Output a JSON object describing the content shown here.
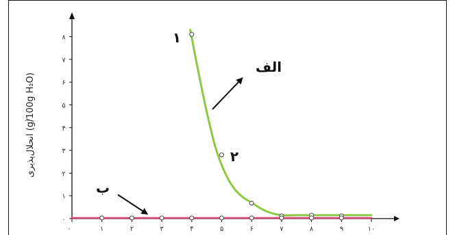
{
  "chart_data": {
    "type": "line",
    "ylabel": "انحلال‌پذیری (g/100g H₂O)",
    "x_ticks": [
      "۰",
      "۱",
      "۲",
      "۳",
      "۴",
      "۵",
      "۶",
      "۷",
      "۸",
      "۹",
      "۱۰"
    ],
    "y_ticks": [
      "۰",
      "۱",
      "۲",
      "۳",
      "۴",
      "۵",
      "۶",
      "۷",
      "۸"
    ],
    "xlim": [
      0,
      10
    ],
    "ylim": [
      0,
      8
    ],
    "series": [
      {
        "name": "الف",
        "color": "#8dc63f",
        "curve_x": [
          3.95,
          4.2,
          4.5,
          4.8,
          5.1,
          5.4,
          5.7,
          6.0,
          6.3,
          6.6,
          7.0,
          7.5,
          8.0,
          9.0,
          10.0
        ],
        "curve_y": [
          8.3,
          6.6,
          4.7,
          3.1,
          2.05,
          1.35,
          0.95,
          0.7,
          0.45,
          0.27,
          0.15,
          0.15,
          0.15,
          0.15,
          0.15
        ],
        "points_x": [
          4,
          5,
          6,
          7,
          8,
          9
        ],
        "points_y": [
          8.1,
          2.8,
          0.68,
          0.12,
          0.15,
          0.12
        ]
      },
      {
        "name": "ب",
        "color": "#e0457b",
        "curve_x": [
          0,
          10
        ],
        "curve_y": [
          0.03,
          0.03
        ],
        "points_x": [
          1,
          2,
          3,
          4,
          5,
          6,
          7,
          8,
          9
        ],
        "points_y": [
          0.03,
          0.03,
          0.03,
          0.03,
          0.03,
          0.03,
          0.03,
          0.03,
          0.03
        ]
      }
    ],
    "annotations": [
      {
        "text": "الف",
        "target_series": "الف"
      },
      {
        "text": "ب",
        "target_series": "ب"
      },
      {
        "text": "۱",
        "point": [
          4,
          8.1
        ]
      },
      {
        "text": "۲",
        "point": [
          5,
          2.8
        ]
      }
    ]
  },
  "stray_mark": "ــ"
}
